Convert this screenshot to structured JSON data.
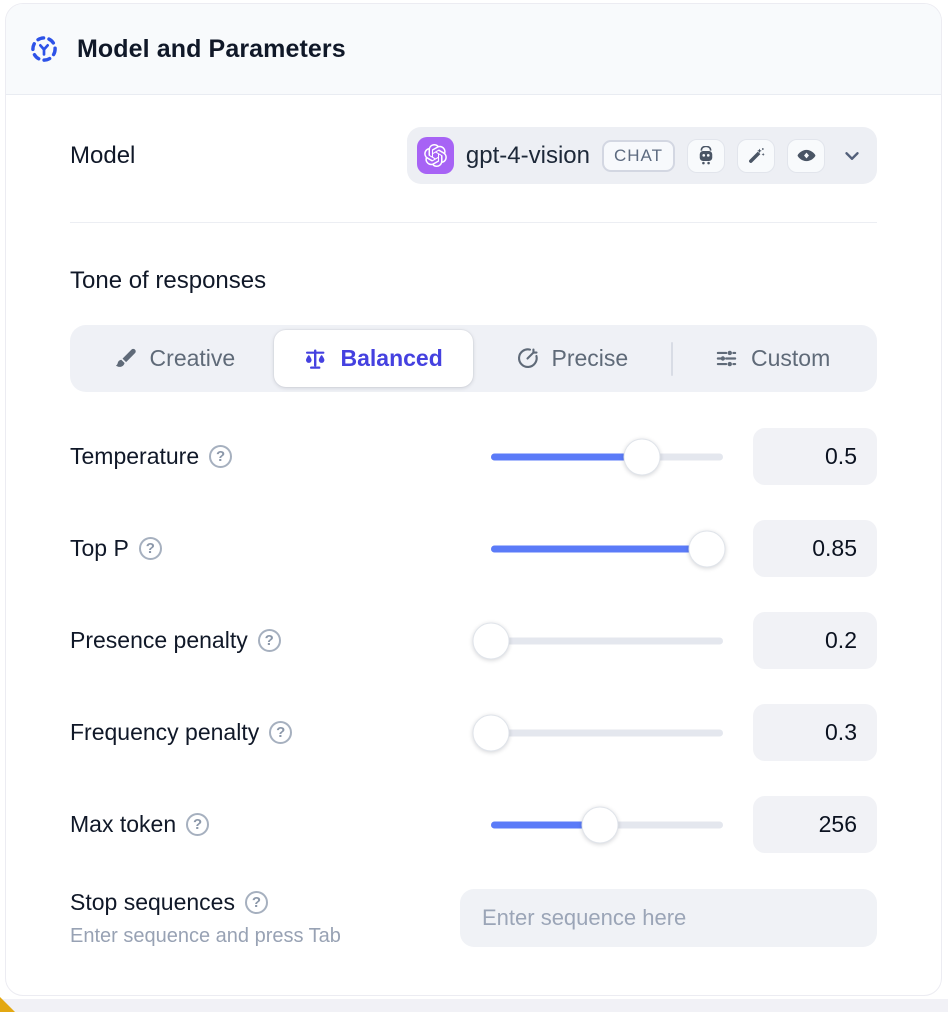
{
  "header": {
    "title": "Model and Parameters"
  },
  "model": {
    "label": "Model",
    "name": "gpt-4-vision",
    "type_badge": "CHAT",
    "capability_icons": [
      "robot",
      "magic-wand",
      "eye"
    ]
  },
  "tone": {
    "heading": "Tone of responses",
    "options": [
      {
        "label": "Creative",
        "selected": false
      },
      {
        "label": "Balanced",
        "selected": true
      },
      {
        "label": "Precise",
        "selected": false
      },
      {
        "label": "Custom",
        "selected": false
      }
    ]
  },
  "parameters": {
    "items": [
      {
        "label": "Temperature",
        "value": "0.5",
        "fill_pct": 65
      },
      {
        "label": "Top P",
        "value": "0.85",
        "fill_pct": 93
      },
      {
        "label": "Presence penalty",
        "value": "0.2",
        "fill_pct": 0
      },
      {
        "label": "Frequency penalty",
        "value": "0.3",
        "fill_pct": 0
      },
      {
        "label": "Max token",
        "value": "256",
        "fill_pct": 47
      }
    ]
  },
  "stop_sequences": {
    "label": "Stop sequences",
    "hint": "Enter sequence and press Tab",
    "placeholder": "Enter sequence here"
  },
  "colors": {
    "accent_blue": "#2d52e8",
    "selected_indigo": "#4541e0",
    "slider_blue": "#5b7bf8",
    "logo_purple": "#a763f5",
    "header_bg": "#f8fafc",
    "pill_bg": "#edeff4"
  }
}
